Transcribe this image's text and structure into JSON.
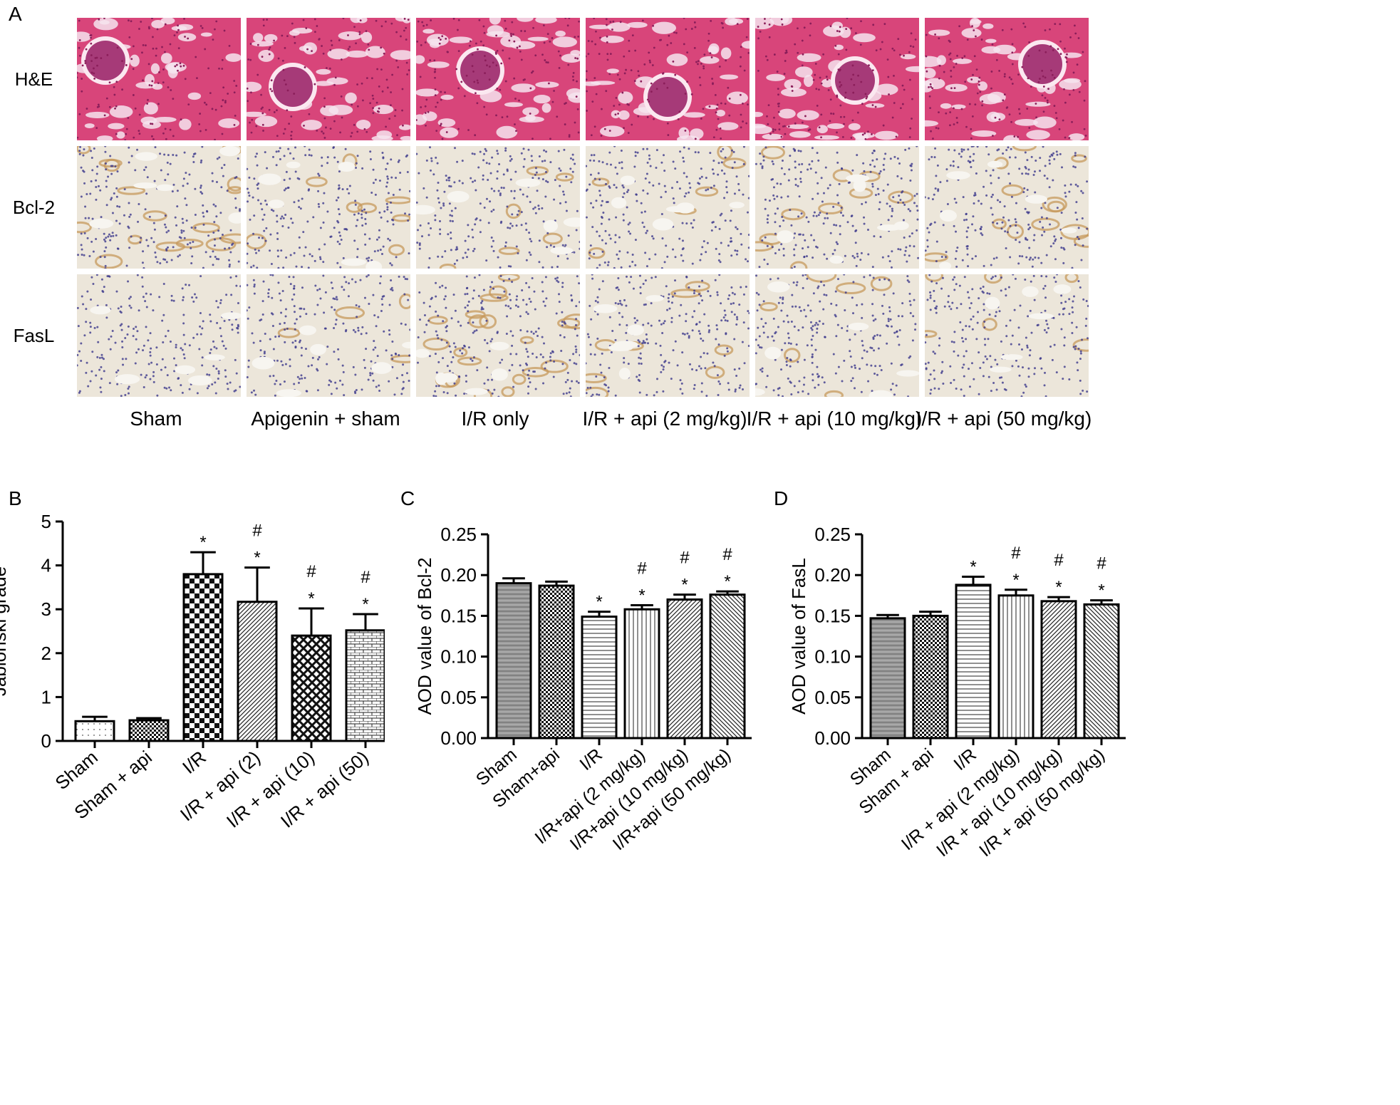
{
  "panel_a": {
    "letter": "A",
    "row_labels": [
      "H&E",
      "Bcl-2",
      "FasL"
    ],
    "col_labels": [
      "Sham",
      "Apigenin + sham",
      "I/R only",
      "I/R + api (2 mg/kg)",
      "I/R + api (10 mg/kg)",
      "I/R + api (50 mg/kg)"
    ],
    "stains": [
      "he",
      "ihc",
      "ihc"
    ]
  },
  "colors": {
    "he_bg": "#d8457a",
    "he_dark": "#8b1e5a",
    "ihc_bg": "#ece6da",
    "ihc_nuclei": "#3d3a8c",
    "brown": "#c79a5c"
  },
  "chart_data": [
    {
      "letter": "B",
      "type": "bar",
      "ylabel": "Jablonski grade",
      "ylim": [
        0,
        5
      ],
      "yticks": [
        "0",
        "1",
        "2",
        "3",
        "4",
        "5"
      ],
      "categories": [
        "Sham",
        "Sham + api",
        "I/R",
        "I/R + api (2)",
        "I/R + api (10)",
        "I/R + api (50)"
      ],
      "values": [
        0.45,
        0.47,
        3.8,
        3.17,
        2.4,
        2.52
      ],
      "errors": [
        0.1,
        0.05,
        0.5,
        0.78,
        0.62,
        0.37
      ],
      "annotations": [
        [],
        [],
        [
          "*"
        ],
        [
          "#",
          "*"
        ],
        [
          "#",
          "*"
        ],
        [
          "#",
          "*"
        ]
      ],
      "patterns": [
        "dots",
        "dense-check",
        "check",
        "diag-fwd",
        "crosshatch",
        "brick"
      ]
    },
    {
      "letter": "C",
      "type": "bar",
      "ylabel": "AOD value of Bcl-2",
      "ylim": [
        0,
        0.25
      ],
      "yticks": [
        "0.00",
        "0.05",
        "0.10",
        "0.15",
        "0.20",
        "0.25"
      ],
      "categories": [
        "Sham",
        "Sham+api",
        "I/R",
        "I/R+api (2 mg/kg)",
        "I/R+api (10 mg/kg)",
        "I/R+api (50 mg/kg)"
      ],
      "values": [
        0.19,
        0.187,
        0.149,
        0.158,
        0.17,
        0.176
      ],
      "errors": [
        0.006,
        0.005,
        0.006,
        0.005,
        0.006,
        0.004
      ],
      "annotations": [
        [],
        [],
        [
          "*"
        ],
        [
          "#",
          "*"
        ],
        [
          "#",
          "*"
        ],
        [
          "#",
          "*"
        ]
      ],
      "patterns": [
        "gray-stripes",
        "dense-check",
        "horizontal",
        "vertical",
        "diag-fwd",
        "diag-back"
      ]
    },
    {
      "letter": "D",
      "type": "bar",
      "ylabel": "AOD value of FasL",
      "ylim": [
        0,
        0.25
      ],
      "yticks": [
        "0.00",
        "0.05",
        "0.10",
        "0.15",
        "0.20",
        "0.25"
      ],
      "categories": [
        "Sham",
        "Sham + api",
        "I/R",
        "I/R + api (2 mg/kg)",
        "I/R + api (10 mg/kg)",
        "I/R + api (50 mg/kg)"
      ],
      "values": [
        0.147,
        0.15,
        0.188,
        0.175,
        0.168,
        0.164
      ],
      "errors": [
        0.004,
        0.005,
        0.01,
        0.007,
        0.005,
        0.005
      ],
      "annotations": [
        [],
        [],
        [
          "*"
        ],
        [
          "#",
          "*"
        ],
        [
          "#",
          "*"
        ],
        [
          "#",
          "*"
        ]
      ],
      "patterns": [
        "gray-stripes",
        "dense-check",
        "horizontal",
        "vertical",
        "diag-fwd",
        "diag-back"
      ]
    }
  ]
}
